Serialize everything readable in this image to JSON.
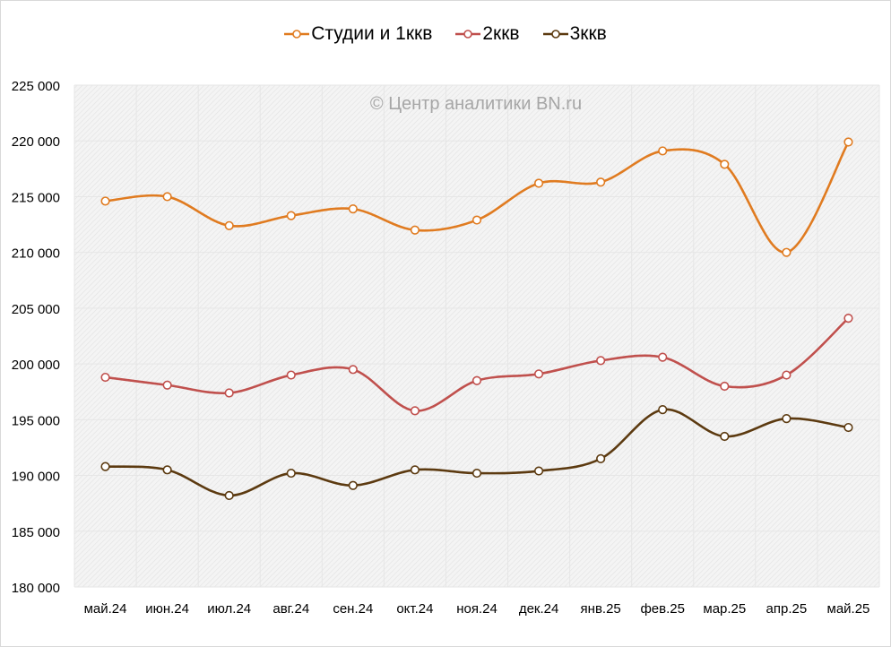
{
  "chart_data": {
    "type": "line",
    "title": "",
    "xlabel": "",
    "ylabel": "",
    "watermark": "© Центр аналитики BN.ru",
    "categories": [
      "май.24",
      "июн.24",
      "июл.24",
      "авг.24",
      "сен.24",
      "окт.24",
      "ноя.24",
      "дек.24",
      "янв.25",
      "фев.25",
      "мар.25",
      "апр.25",
      "май.25"
    ],
    "ylim": [
      180000,
      225000
    ],
    "yticks": [
      180000,
      185000,
      190000,
      195000,
      200000,
      205000,
      210000,
      215000,
      220000,
      225000
    ],
    "ytick_labels": [
      "180 000",
      "185 000",
      "190 000",
      "195 000",
      "200 000",
      "205 000",
      "210 000",
      "215 000",
      "220 000",
      "225 000"
    ],
    "grid": true,
    "smooth": true,
    "legend_position": "top",
    "series": [
      {
        "name": "Студии и 1ккв",
        "color": "#E07B20",
        "marker": "hollow-circle",
        "values": [
          214600,
          215000,
          212400,
          213300,
          213900,
          212000,
          212900,
          216200,
          216300,
          219100,
          217900,
          210000,
          219900
        ]
      },
      {
        "name": "2ккв",
        "color": "#C0504D",
        "marker": "hollow-circle",
        "values": [
          198800,
          198100,
          197400,
          199000,
          199500,
          195800,
          198500,
          199100,
          200300,
          200600,
          198000,
          199000,
          204100
        ]
      },
      {
        "name": "3ккв",
        "color": "#5C3A10",
        "marker": "hollow-circle",
        "values": [
          190800,
          190500,
          188200,
          190200,
          189100,
          190500,
          190200,
          190400,
          191500,
          195900,
          193500,
          195100,
          194300
        ]
      }
    ]
  }
}
